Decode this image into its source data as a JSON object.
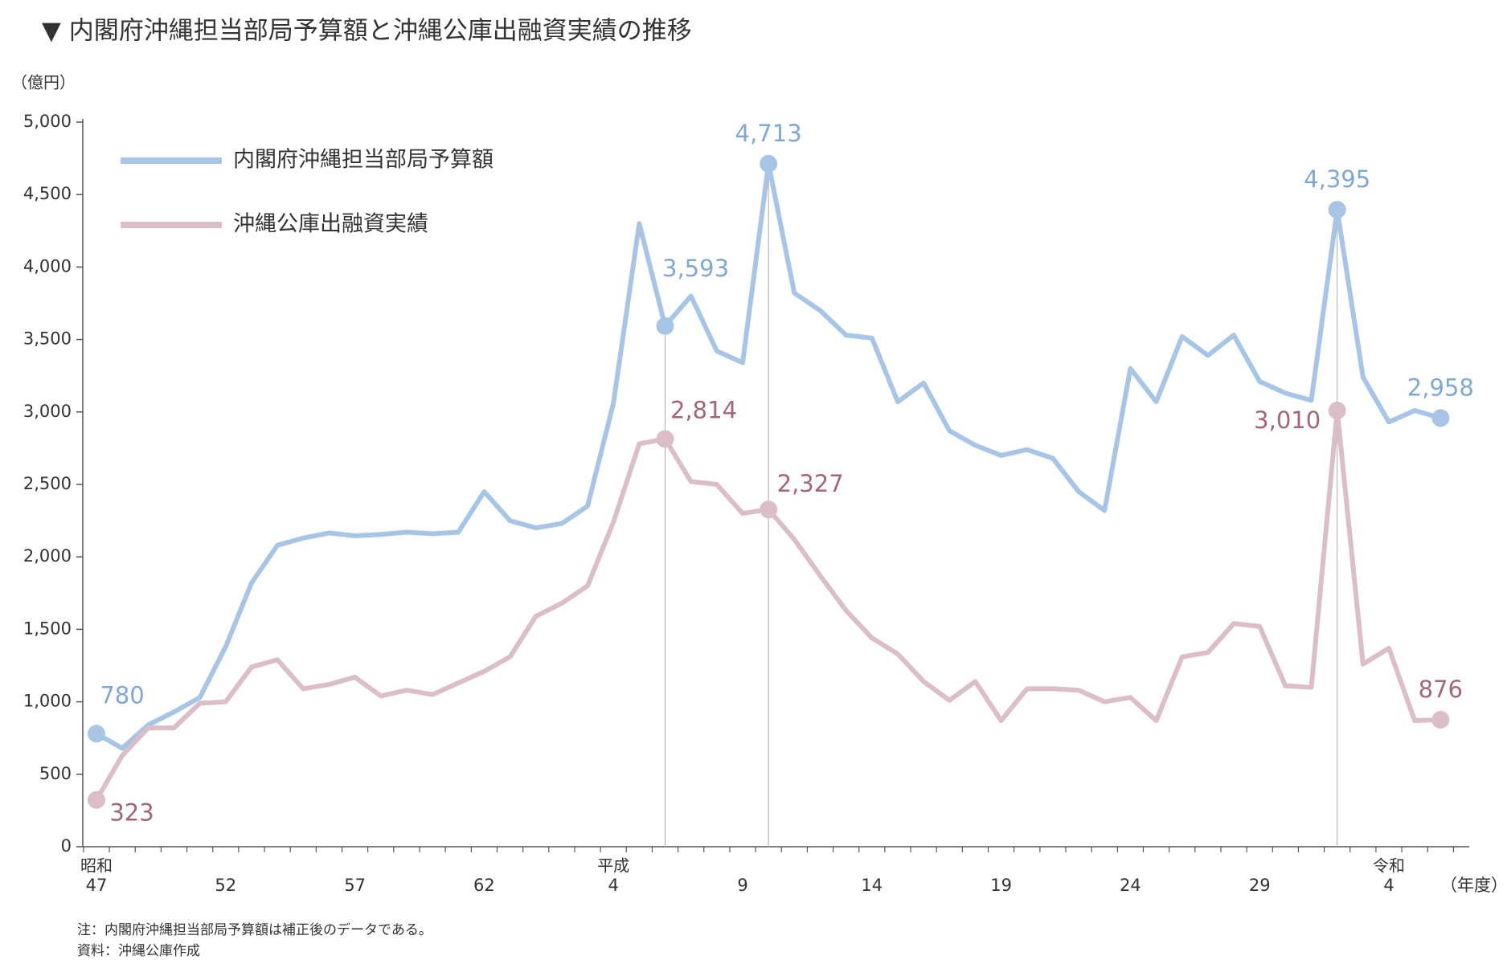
{
  "chart_data": {
    "type": "line",
    "title": "▼ 内閣府沖縄担当部局予算額と沖縄公庫出融資実績の推移",
    "y_axis_label": "（億円）",
    "x_axis_label": "（年度）",
    "notes": [
      "注：内閣府沖縄担当部局予算額は補正後のデータである。",
      "資料：沖縄公庫作成"
    ],
    "category_eras": [
      "昭和",
      null,
      null,
      null,
      null,
      null,
      null,
      null,
      null,
      null,
      null,
      null,
      null,
      null,
      null,
      null,
      null,
      null,
      null,
      null,
      "平成",
      null,
      null,
      null,
      null,
      null,
      null,
      null,
      null,
      null,
      null,
      null,
      null,
      null,
      null,
      null,
      null,
      null,
      null,
      null,
      null,
      null,
      null,
      null,
      null,
      null,
      null,
      null,
      null,
      null,
      "令和",
      null,
      null
    ],
    "categories": [
      "47",
      null,
      null,
      null,
      null,
      "52",
      null,
      null,
      null,
      null,
      "57",
      null,
      null,
      null,
      null,
      "62",
      null,
      null,
      null,
      null,
      "4",
      null,
      null,
      null,
      null,
      "9",
      null,
      null,
      null,
      null,
      "14",
      null,
      null,
      null,
      null,
      "19",
      null,
      null,
      null,
      null,
      "24",
      null,
      null,
      null,
      null,
      "29",
      null,
      null,
      null,
      null,
      "4",
      null,
      null
    ],
    "series": [
      {
        "name": "内閣府沖縄担当部局予算額",
        "color": "#a6c5e7",
        "label_color": "#7fa8d4",
        "values": [
          780,
          680,
          840,
          930,
          1030,
          1380,
          1820,
          2080,
          2130,
          2165,
          2145,
          2155,
          2170,
          2160,
          2170,
          2450,
          2250,
          2200,
          2230,
          2350,
          3060,
          4300,
          3593,
          3800,
          3420,
          3340,
          4713,
          3820,
          3700,
          3530,
          3510,
          3070,
          3200,
          2870,
          2770,
          2700,
          2740,
          2680,
          2450,
          2320,
          3300,
          3070,
          3520,
          3390,
          3530,
          3210,
          3130,
          3080,
          4395,
          3240,
          2930,
          3010,
          2958
        ],
        "value_labels": [
          "780",
          null,
          null,
          null,
          null,
          null,
          null,
          null,
          null,
          null,
          null,
          null,
          null,
          null,
          null,
          null,
          null,
          null,
          null,
          null,
          null,
          null,
          "3,593",
          null,
          null,
          null,
          "4,713",
          null,
          null,
          null,
          null,
          null,
          null,
          null,
          null,
          null,
          null,
          null,
          null,
          null,
          null,
          null,
          null,
          null,
          null,
          null,
          null,
          null,
          "4,395",
          null,
          null,
          null,
          "2,958"
        ]
      },
      {
        "name": "沖縄公庫出融資実績",
        "color": "#dbbec6",
        "label_color": "#a3657a",
        "values": [
          323,
          630,
          820,
          820,
          990,
          1000,
          1240,
          1290,
          1090,
          1120,
          1170,
          1040,
          1080,
          1050,
          1130,
          1210,
          1310,
          1590,
          1680,
          1800,
          2240,
          2780,
          2814,
          2520,
          2500,
          2300,
          2327,
          2120,
          1870,
          1630,
          1440,
          1330,
          1140,
          1010,
          1140,
          870,
          1090,
          1090,
          1080,
          1000,
          1030,
          870,
          1310,
          1340,
          1540,
          1520,
          1110,
          1100,
          3010,
          1260,
          1370,
          870,
          876
        ],
        "value_labels": [
          "323",
          null,
          null,
          null,
          null,
          null,
          null,
          null,
          null,
          null,
          null,
          null,
          null,
          null,
          null,
          null,
          null,
          null,
          null,
          null,
          null,
          null,
          "2,814",
          null,
          null,
          null,
          "2,327",
          null,
          null,
          null,
          null,
          null,
          null,
          null,
          null,
          null,
          null,
          null,
          null,
          null,
          null,
          null,
          null,
          null,
          null,
          null,
          null,
          null,
          "3,010",
          null,
          null,
          null,
          "876"
        ]
      }
    ],
    "ylim": [
      0,
      5000
    ],
    "yticks": [
      0,
      500,
      {
        "value": 1000,
        "label": "1,000"
      },
      {
        "value": 1500,
        "label": "1,500"
      },
      {
        "value": 2000,
        "label": "2,000"
      },
      {
        "value": 2500,
        "label": "2,500"
      },
      {
        "value": 3000,
        "label": "3,000"
      },
      {
        "value": 3500,
        "label": "3,500"
      },
      {
        "value": 4000,
        "label": "4,000"
      },
      {
        "value": 4500,
        "label": "4,500"
      },
      {
        "value": 5000,
        "label": "5,000"
      }
    ]
  }
}
